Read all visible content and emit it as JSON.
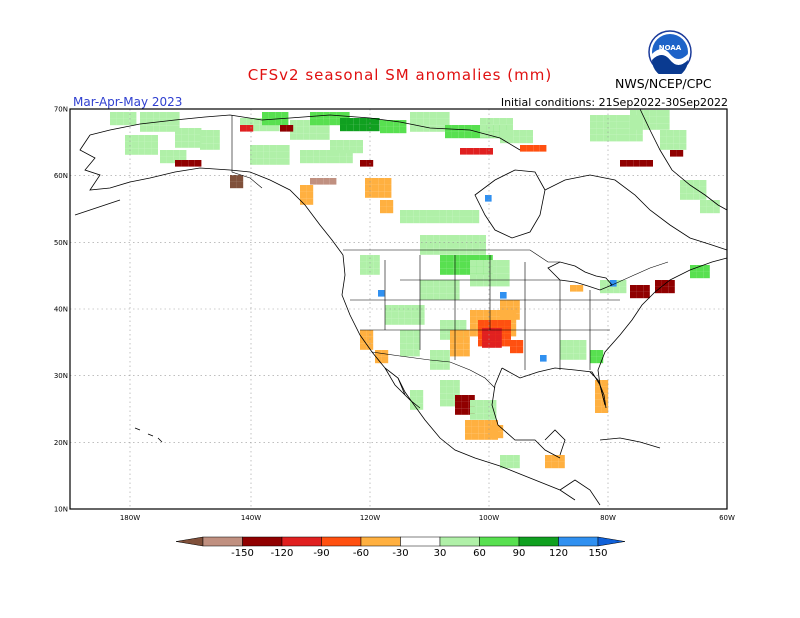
{
  "header": {
    "title": "CFSv2 seasonal SM anomalies (mm)",
    "season": "Mar-Apr-May 2023",
    "initial_conditions": "Initial conditions: 21Sep2022-30Sep2022",
    "org": "NWS/NCEP/CPC",
    "logo_text": "NOAA"
  },
  "map": {
    "lat_labels": [
      "70N",
      "60N",
      "50N",
      "40N",
      "30N",
      "20N",
      "10N"
    ],
    "lon_labels": [
      "180W",
      "140W",
      "120W",
      "100W",
      "80W",
      "60W"
    ]
  },
  "colorbar": {
    "labels": [
      "-150",
      "-120",
      "-90",
      "-60",
      "-30",
      "30",
      "60",
      "90",
      "120",
      "150"
    ],
    "colors": [
      "#80503a",
      "#c09080",
      "#900000",
      "#e02020",
      "#ff5010",
      "#ffb040",
      "#ffffff",
      "#b0f0a8",
      "#58e050",
      "#10a020",
      "#3090f0",
      "#1060d8"
    ]
  },
  "legend_colors": {
    "dry_strong": "#80503a",
    "dry_med": "#c09080",
    "dry_dark": "#900000",
    "dry_red": "#e02020",
    "dry_orange": "#ff5010",
    "dry_light": "#ffb040",
    "wet_light": "#b0f0a8",
    "wet_med": "#58e050",
    "wet_dark": "#10a020",
    "wet_blue": "#3090f0"
  }
}
